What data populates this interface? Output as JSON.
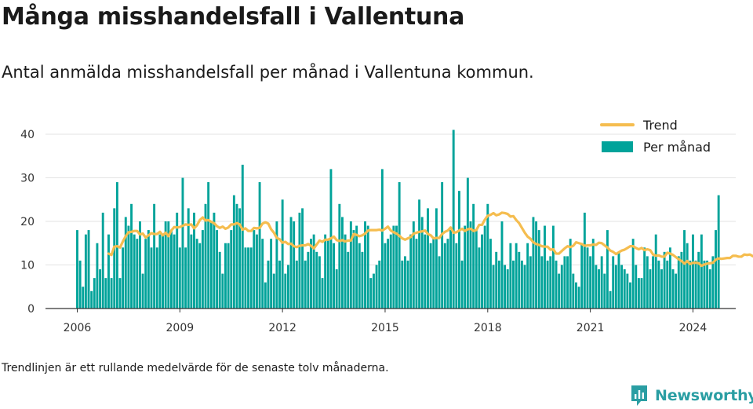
{
  "title": "Många misshandelsfall i Vallentuna",
  "subtitle": "Antal anmälda misshandelsfall per månad i Vallentuna kommun.",
  "footnote": "Trendlinjen är ett rullande medelvärde för de senaste tolv månaderna.",
  "brand": {
    "name": "Newsworthy",
    "color": "#2a9ea3"
  },
  "chart_data": {
    "type": "bar",
    "x_start": "2006-01",
    "xticks": [
      "2006",
      "2009",
      "2012",
      "2015",
      "2018",
      "2021",
      "2024"
    ],
    "yticks": [
      0,
      10,
      20,
      30,
      40
    ],
    "ylim": [
      0,
      42
    ],
    "grid": true,
    "legend_position": "top-right",
    "colors": {
      "bars": "#00a39a",
      "trend": "#f5bd4f"
    },
    "series": [
      {
        "name": "Per månad",
        "kind": "bar",
        "values": [
          18,
          11,
          5,
          17,
          18,
          4,
          7,
          15,
          9,
          22,
          7,
          17,
          7,
          23,
          29,
          7,
          14,
          21,
          19,
          24,
          17,
          16,
          20,
          8,
          16,
          18,
          14,
          24,
          14,
          17,
          17,
          20,
          20,
          18,
          17,
          22,
          14,
          30,
          14,
          23,
          17,
          22,
          16,
          15,
          18,
          24,
          29,
          20,
          22,
          18,
          13,
          8,
          15,
          15,
          18,
          26,
          24,
          23,
          33,
          14,
          14,
          14,
          18,
          17,
          29,
          16,
          6,
          11,
          16,
          8,
          20,
          11,
          25,
          8,
          10,
          21,
          20,
          11,
          22,
          23,
          11,
          13,
          16,
          17,
          13,
          12,
          7,
          17,
          16,
          32,
          15,
          9,
          24,
          21,
          17,
          13,
          20,
          18,
          19,
          15,
          13,
          20,
          19,
          7,
          8,
          10,
          11,
          32,
          15,
          16,
          17,
          19,
          19,
          29,
          11,
          12,
          11,
          17,
          20,
          16,
          25,
          21,
          17,
          23,
          15,
          16,
          23,
          12,
          29,
          15,
          16,
          18,
          41,
          15,
          27,
          11,
          19,
          30,
          20,
          24,
          18,
          14,
          17,
          19,
          24,
          16,
          10,
          13,
          11,
          20,
          10,
          9,
          15,
          11,
          15,
          13,
          11,
          10,
          15,
          12,
          21,
          20,
          18,
          12,
          19,
          11,
          12,
          19,
          11,
          8,
          10,
          12,
          12,
          16,
          8,
          6,
          5,
          15,
          22,
          14,
          12,
          16,
          10,
          9,
          12,
          8,
          18,
          4,
          12,
          10,
          13,
          10,
          9,
          8,
          6,
          16,
          10,
          7,
          7,
          14,
          12,
          9,
          12,
          17,
          11,
          9,
          13,
          11,
          14,
          9,
          8,
          12,
          13,
          18,
          15,
          11,
          17,
          11,
          13,
          17,
          11,
          11,
          9,
          12,
          18,
          26
        ]
      },
      {
        "name": "Trend",
        "kind": "line",
        "start_index": 11,
        "values": [
          12.6,
          12.3,
          14.2,
          14.3,
          14.0,
          15.4,
          16.6,
          17.5,
          17.6,
          17.8,
          17.8,
          17.0,
          17.2,
          16.3,
          16.8,
          17.3,
          17.1,
          17.1,
          17.6,
          16.8,
          17.4,
          16.6,
          17.9,
          18.7,
          18.6,
          18.7,
          19.0,
          19.3,
          19.2,
          19.3,
          18.4,
          19.1,
          20.3,
          20.9,
          20.2,
          20.3,
          19.9,
          19.6,
          18.9,
          18.5,
          18.8,
          18.3,
          18.6,
          19.3,
          19.3,
          19.6,
          19.3,
          18.1,
          18.4,
          17.8,
          17.8,
          18.5,
          18.4,
          18.5,
          19.5,
          19.8,
          19.5,
          18.2,
          17.4,
          16.2,
          15.9,
          15.1,
          15.3,
          14.8,
          14.9,
          14.3,
          14.1,
          14.4,
          14.5,
          14.5,
          14.8,
          14.4,
          13.8,
          14.7,
          15.6,
          15.3,
          15.8,
          15.8,
          16.1,
          16.5,
          15.7,
          15.5,
          15.7,
          15.4,
          15.6,
          15.6,
          17.1,
          16.9,
          16.6,
          16.8,
          17.2,
          17.9,
          18.0,
          18.0,
          18.0,
          18.1,
          17.9,
          18.3,
          18.8,
          17.9,
          17.5,
          17.2,
          16.7,
          16.1,
          15.8,
          16.1,
          16.4,
          17.2,
          17.4,
          17.6,
          17.7,
          17.9,
          17.1,
          16.8,
          16.1,
          16.2,
          16.2,
          17.1,
          17.6,
          17.9,
          18.6,
          17.4,
          17.5,
          17.9,
          18.3,
          17.8,
          18.2,
          18.3,
          17.8,
          18.0,
          19.2,
          19.2,
          20.4,
          21.3,
          21.5,
          21.9,
          21.4,
          21.6,
          22.0,
          21.9,
          21.7,
          21.1,
          21.2,
          20.3,
          19.6,
          18.5,
          17.4,
          16.5,
          16.0,
          15.2,
          14.8,
          14.6,
          14.3,
          14.2,
          14.2,
          13.5,
          13.6,
          12.6,
          12.6,
          13.2,
          13.8,
          14.3,
          14.1,
          14.4,
          15.2,
          15.0,
          14.8,
          14.4,
          14.5,
          14.5,
          14.7,
          14.6,
          15.1,
          15.0,
          14.5,
          14.0,
          13.3,
          13.0,
          12.5,
          12.9,
          13.3,
          13.5,
          13.9,
          14.3,
          14.3,
          13.9,
          13.6,
          13.9,
          13.4,
          13.6,
          13.4,
          12.4,
          12.1,
          12.2,
          11.9,
          11.9,
          12.8,
          12.6,
          12.3,
          11.8,
          11.3,
          10.9,
          10.3,
          10.9,
          10.2,
          10.5,
          10.5,
          10.4,
          9.8,
          10.1,
          10.3,
          10.4,
          10.5,
          11.2,
          11.5,
          11.4,
          11.5,
          11.6,
          11.6,
          12.1,
          12.1,
          11.9,
          11.9,
          12.4,
          12.3,
          12.4,
          12.0,
          12.1,
          12.1,
          12.1,
          12.6,
          12.5,
          12.7,
          12.4,
          12.6,
          12.3,
          12.7,
          14.0,
          14.6
        ]
      }
    ]
  }
}
